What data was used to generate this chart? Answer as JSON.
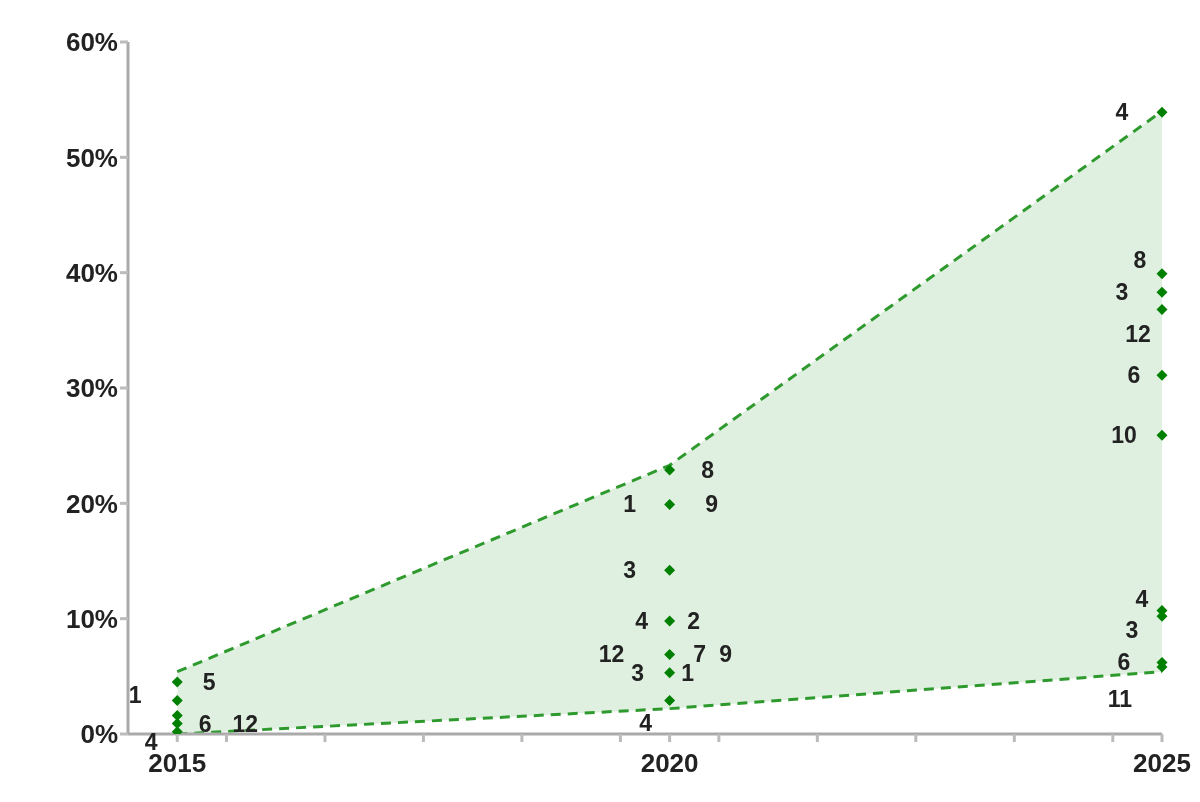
{
  "chart_data": {
    "type": "scatter",
    "series": [
      {
        "type": "line",
        "color": "#2e9a2e",
        "line_style": "dashed",
        "marker": "none",
        "x": [
          2015,
          2020,
          2025
        ],
        "values": [
          5.4,
          23.3,
          54
        ],
        "lower": [
          0,
          2.2,
          5.4
        ],
        "upper": [
          5.4,
          23.3,
          54
        ]
      },
      {
        "type": "scatter",
        "color": "#008000",
        "x": [
          2015,
          2015,
          2015,
          2015,
          2015,
          2020,
          2020,
          2020,
          2020,
          2020,
          2020,
          2020,
          2025,
          2025,
          2025,
          2025,
          2025,
          2025,
          2025,
          2025,
          2025,
          2025
        ],
        "values": [
          4.5,
          2.9,
          1.6,
          0.9,
          0.2,
          22.9,
          19.9,
          14.2,
          9.8,
          6.9,
          5.3,
          2.9,
          53.9,
          39.9,
          38.3,
          36.8,
          31.1,
          25.9,
          10.7,
          10.2,
          6.2,
          5.8
        ]
      }
    ],
    "marker": "diamond",
    "xlim": [
      2014.5,
      2025
    ],
    "xticks": [
      2015,
      {
        "value": 2015.5,
        "label": null
      },
      {
        "value": 2016.5,
        "label": null
      },
      {
        "value": 2017.5,
        "label": null
      },
      {
        "value": 2018.5,
        "label": null
      },
      {
        "value": 2019.5,
        "label": null
      },
      2020,
      {
        "value": 2020.5,
        "label": null
      },
      {
        "value": 2021.5,
        "label": null
      },
      {
        "value": 2022.5,
        "label": null
      },
      {
        "value": 2023.5,
        "label": null
      },
      {
        "value": 2024.5,
        "label": null
      },
      2025
    ],
    "ylim": [
      0,
      60
    ],
    "yticks": [
      {
        "value": 0,
        "label": "0%"
      },
      {
        "value": 10,
        "label": "10%"
      },
      {
        "value": 20,
        "label": "20%"
      },
      {
        "value": 30,
        "label": "30%"
      },
      {
        "value": 40,
        "label": "40%"
      },
      {
        "value": 50,
        "label": "50%"
      },
      {
        "value": 60,
        "label": "60%"
      }
    ],
    "grid": false,
    "legend": false,
    "annotations": [
      {
        "text": "5",
        "x": 2015,
        "y": 4.5
      },
      {
        "text": "1",
        "x": 2015,
        "y": 2.9
      },
      {
        "text": "6",
        "x": 2015,
        "y": 0.9
      },
      {
        "text": "12",
        "x": 2015,
        "y": 0.9
      },
      {
        "text": "4",
        "x": 2015,
        "y": 0.2
      },
      {
        "text": "8",
        "x": 2020,
        "y": 22.9
      },
      {
        "text": "1",
        "x": 2020,
        "y": 19.9
      },
      {
        "text": "9",
        "x": 2020,
        "y": 19.9
      },
      {
        "text": "3",
        "x": 2020,
        "y": 14.2
      },
      {
        "text": "4",
        "x": 2020,
        "y": 9.8
      },
      {
        "text": "2",
        "x": 2020,
        "y": 9.8
      },
      {
        "text": "12",
        "x": 2020,
        "y": 6.9
      },
      {
        "text": "7",
        "x": 2020,
        "y": 6.9
      },
      {
        "text": "9",
        "x": 2020,
        "y": 6.9
      },
      {
        "text": "3",
        "x": 2020,
        "y": 5.3
      },
      {
        "text": "1",
        "x": 2020,
        "y": 5.3
      },
      {
        "text": "4",
        "x": 2020,
        "y": 2.9
      },
      {
        "text": "4",
        "x": 2025,
        "y": 53.9
      },
      {
        "text": "8",
        "x": 2025,
        "y": 39.9
      },
      {
        "text": "3",
        "x": 2025,
        "y": 38.3
      },
      {
        "text": "12",
        "x": 2025,
        "y": 36.8
      },
      {
        "text": "6",
        "x": 2025,
        "y": 31.1
      },
      {
        "text": "10",
        "x": 2025,
        "y": 25.9
      },
      {
        "text": "4",
        "x": 2025,
        "y": 10.7
      },
      {
        "text": "3",
        "x": 2025,
        "y": 10.2
      },
      {
        "text": "6",
        "x": 2025,
        "y": 6.2
      },
      {
        "text": "11",
        "x": 2025,
        "y": 5.8
      }
    ]
  }
}
